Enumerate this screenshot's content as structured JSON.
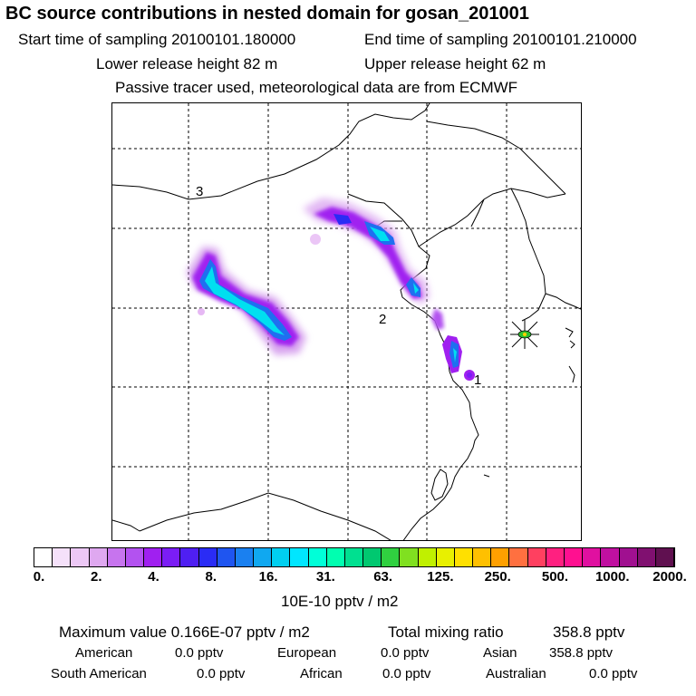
{
  "header": {
    "title": "BC  source contributions in nested domain for gosan_201001",
    "start_label": "Start time of sampling 20100101.180000",
    "end_label": "End time of sampling 20100101.210000",
    "lower_label": "Lower release height   82 m",
    "upper_label": "Upper release height   62 m",
    "note": "Passive tracer used, meteorological data are from ECMWF"
  },
  "map": {
    "region_labels": [
      "3",
      "2",
      "1"
    ],
    "receptor_marker": "gosan-receptor"
  },
  "colorbar": {
    "colors": [
      "#ffffff",
      "#f5e1fa",
      "#ecc8f5",
      "#dfa8f0",
      "#c774ee",
      "#b352f0",
      "#a020f0",
      "#7b1df5",
      "#4f1ff2",
      "#2a2cf5",
      "#1f55f0",
      "#1a80f0",
      "#10a8f0",
      "#00cff0",
      "#00e6ff",
      "#00ffd8",
      "#00ffb0",
      "#00e090",
      "#00c870",
      "#30d040",
      "#80e020",
      "#c0f000",
      "#e8f000",
      "#ffe000",
      "#ffc000",
      "#ffa000",
      "#ff7040",
      "#ff4060",
      "#ff2080",
      "#ff1090",
      "#e010a0",
      "#c010a0",
      "#a01090",
      "#801070",
      "#601050"
    ],
    "ticks": [
      "0.",
      "2.",
      "4.",
      "8.",
      "16.",
      "31.",
      "63.",
      "125.",
      "250.",
      "500.",
      "1000.",
      "2000."
    ],
    "units": "10E-10 pptv / m2"
  },
  "summary": {
    "max_label": "Maximum value  0.166E-07 pptv / m2",
    "total_label": "Total mixing ratio",
    "total_value": "358.8 pptv",
    "regions": [
      {
        "name": "American",
        "value": "0.0 pptv"
      },
      {
        "name": "European",
        "value": "0.0 pptv"
      },
      {
        "name": "Asian",
        "value": "358.8 pptv"
      },
      {
        "name": "South American",
        "value": "0.0 pptv"
      },
      {
        "name": "African",
        "value": "0.0 pptv"
      },
      {
        "name": "Australian",
        "value": "0.0 pptv"
      }
    ]
  }
}
